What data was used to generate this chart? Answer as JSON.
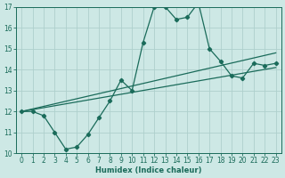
{
  "xlabel": "Humidex (Indice chaleur)",
  "bg_color": "#cde8e5",
  "line_color": "#1a6b5a",
  "grid_color": "#aed0cc",
  "xlim": [
    -0.5,
    23.5
  ],
  "ylim": [
    10,
    17
  ],
  "yticks": [
    10,
    11,
    12,
    13,
    14,
    15,
    16,
    17
  ],
  "xticks": [
    0,
    1,
    2,
    3,
    4,
    5,
    6,
    7,
    8,
    9,
    10,
    11,
    12,
    13,
    14,
    15,
    16,
    17,
    18,
    19,
    20,
    21,
    22,
    23
  ],
  "line1_x": [
    0,
    1,
    2,
    3,
    4,
    5,
    6,
    7,
    8,
    9,
    10,
    11,
    12,
    13,
    14,
    15,
    16,
    17,
    18,
    19,
    20,
    21,
    22,
    23
  ],
  "line1_y": [
    12.0,
    12.0,
    11.8,
    11.0,
    10.2,
    10.3,
    10.9,
    11.7,
    12.5,
    13.5,
    13.0,
    15.3,
    17.0,
    17.0,
    16.4,
    16.5,
    17.2,
    15.0,
    14.4,
    13.7,
    13.6,
    14.3,
    14.2,
    14.3
  ],
  "line2_x": [
    0,
    23
  ],
  "line2_y": [
    12.0,
    14.8
  ],
  "line3_x": [
    0,
    23
  ],
  "line3_y": [
    12.0,
    14.1
  ]
}
